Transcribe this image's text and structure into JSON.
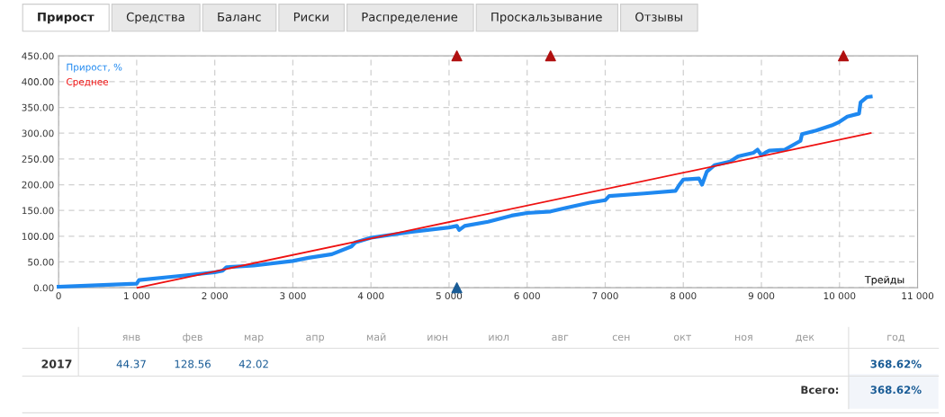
{
  "chart_data": [
    {
      "type": "line",
      "xlabel": "Трейды",
      "legend": "top left",
      "grid": true,
      "marker": "none",
      "annotations": [
        "Прирост",
        "Средства",
        "Баланс",
        "Риски",
        "Распределение",
        "Проскальзывание",
        "Отзывы"
      ],
      "xlim": [
        0,
        11000
      ],
      "xticks": [
        0,
        {
          "value": 1000,
          "label": "1 000"
        },
        {
          "value": 2000,
          "label": "2 000"
        },
        {
          "value": 3000,
          "label": "3 000"
        },
        {
          "value": 4000,
          "label": "4 000"
        },
        {
          "value": 5000,
          "label": "5 000"
        },
        {
          "value": 6000,
          "label": "6 000"
        },
        {
          "value": 7000,
          "label": "7 000"
        },
        {
          "value": 8000,
          "label": "8 000"
        },
        {
          "value": 9000,
          "label": "9 000"
        },
        {
          "value": 10000,
          "label": "10 000"
        },
        {
          "value": 11000,
          "label": "11 000"
        }
      ],
      "ylim": [
        0,
        450
      ],
      "yticks": [
        {
          "value": 0,
          "label": "0.00"
        },
        {
          "value": 50,
          "label": "50.00"
        },
        {
          "value": 100,
          "label": "100.00"
        },
        {
          "value": 150,
          "label": "150.00"
        },
        {
          "value": 200,
          "label": "200.00"
        },
        {
          "value": 250,
          "label": "250.00"
        },
        {
          "value": 300,
          "label": "300.00"
        },
        {
          "value": 350,
          "label": "350.00"
        },
        {
          "value": 400,
          "label": "400.00"
        },
        {
          "value": 450,
          "label": "450.00"
        }
      ],
      "series": [
        {
          "name": "Прирост, %",
          "color": "#1e88f0",
          "x": [
            0,
            1000,
            1030,
            1500,
            2000,
            2100,
            2150,
            2500,
            3000,
            3200,
            3500,
            3750,
            3800,
            4000,
            4500,
            5000,
            5100,
            5130,
            5200,
            5500,
            5800,
            6000,
            6300,
            6500,
            6800,
            7000,
            7050,
            7500,
            7900,
            7950,
            8000,
            8200,
            8240,
            8300,
            8400,
            8600,
            8700,
            8900,
            8950,
            9000,
            9050,
            9100,
            9300,
            9500,
            9520,
            9700,
            9900,
            10000,
            10100,
            10250,
            10270,
            10350,
            10400
          ],
          "values": [
            2,
            8,
            15,
            22,
            30,
            33,
            40,
            43,
            52,
            58,
            65,
            80,
            88,
            97,
            108,
            117,
            120,
            112,
            120,
            128,
            140,
            145,
            148,
            155,
            165,
            170,
            178,
            183,
            188,
            200,
            210,
            212,
            200,
            225,
            238,
            245,
            255,
            262,
            268,
            257,
            262,
            266,
            268,
            285,
            298,
            305,
            315,
            322,
            332,
            338,
            360,
            370,
            371
          ]
        },
        {
          "name": "Среднее",
          "color": "#ee1111",
          "x": [
            1010,
            10400
          ],
          "values": [
            0,
            300
          ]
        },
        {
          "type": "scatter",
          "color": "#b01010",
          "marker": "triangle",
          "x": [
            5100,
            6300,
            10050
          ],
          "values": [
            450,
            450,
            450
          ]
        },
        {
          "type": "scatter",
          "color": "#1a5c96",
          "marker": "triangle",
          "x": [
            5100
          ],
          "values": [
            0
          ]
        }
      ]
    },
    {
      "type": "other",
      "annotations": [
        "янв",
        "фев",
        "мар",
        "апр",
        "май",
        "июн",
        "июл",
        "авг",
        "сен",
        "окт",
        "ноя",
        "дек",
        "год",
        "2017",
        "44.37",
        "128.56",
        "42.02",
        "368.62%",
        "Всего:",
        "368.62%"
      ]
    }
  ]
}
